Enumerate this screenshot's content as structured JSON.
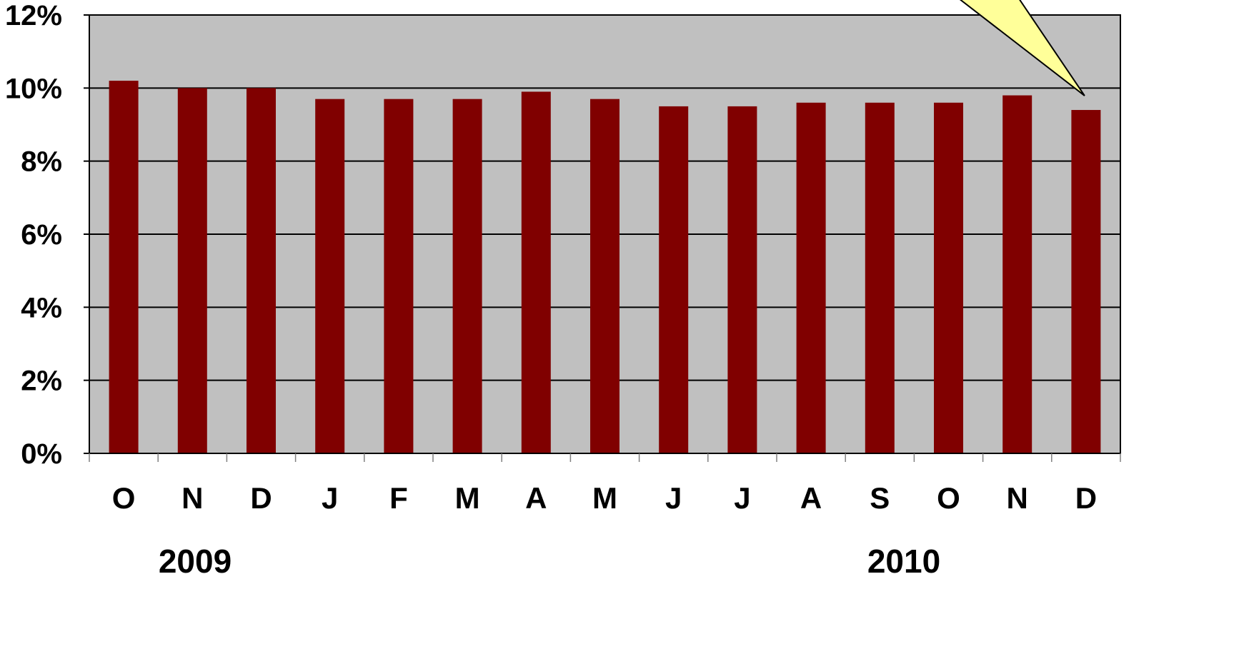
{
  "chart_data": {
    "type": "bar",
    "title": "",
    "xlabel": "",
    "ylabel": "",
    "categories": [
      "O",
      "N",
      "D",
      "J",
      "F",
      "M",
      "A",
      "M",
      "J",
      "J",
      "A",
      "S",
      "O",
      "N",
      "D"
    ],
    "year_groups": [
      {
        "label": "2009",
        "start": 0,
        "end": 2
      },
      {
        "label": "2010",
        "start": 3,
        "end": 14
      }
    ],
    "series": [
      {
        "values": [
          10.2,
          10.0,
          10.0,
          9.7,
          9.7,
          9.7,
          9.9,
          9.7,
          9.5,
          9.5,
          9.6,
          9.6,
          9.6,
          9.8,
          9.4
        ],
        "color": "#800000"
      }
    ],
    "ylim": [
      0,
      12
    ],
    "yticks": [
      0,
      2,
      4,
      6,
      8,
      10,
      12
    ],
    "ytick_labels": [
      "0%",
      "2%",
      "4%",
      "6%",
      "8%",
      "10%",
      "12%"
    ],
    "grid": true,
    "plot_background": "#c0c0c0",
    "callout_color": "#ffff99",
    "callout_target_index": 14
  }
}
